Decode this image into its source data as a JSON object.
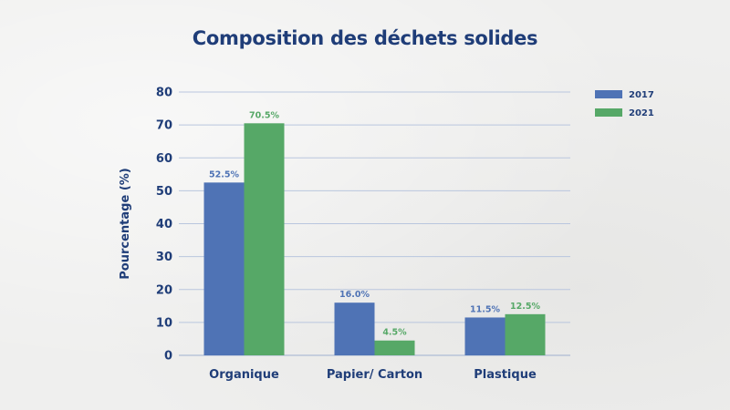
{
  "chart_data": {
    "type": "bar",
    "title": "Composition des déchets solides",
    "xlabel": "",
    "ylabel": "Pourcentage (%)",
    "ylim": [
      0,
      80
    ],
    "yticks": [
      0,
      10,
      20,
      30,
      40,
      50,
      60,
      70,
      80
    ],
    "categories": [
      "Organique",
      "Papier/ Carton",
      "Plastique"
    ],
    "series": [
      {
        "name": "2017",
        "values": [
          52.5,
          16.0,
          11.5
        ],
        "labels": [
          "52.5%",
          "16.0%",
          "11.5%"
        ],
        "color": "#4f73b5"
      },
      {
        "name": "2021",
        "values": [
          70.5,
          4.5,
          12.5
        ],
        "labels": [
          "70.5%",
          "4.5%",
          "12.5%"
        ],
        "color": "#56a867"
      }
    ],
    "grid": true,
    "legend": "top-right"
  }
}
